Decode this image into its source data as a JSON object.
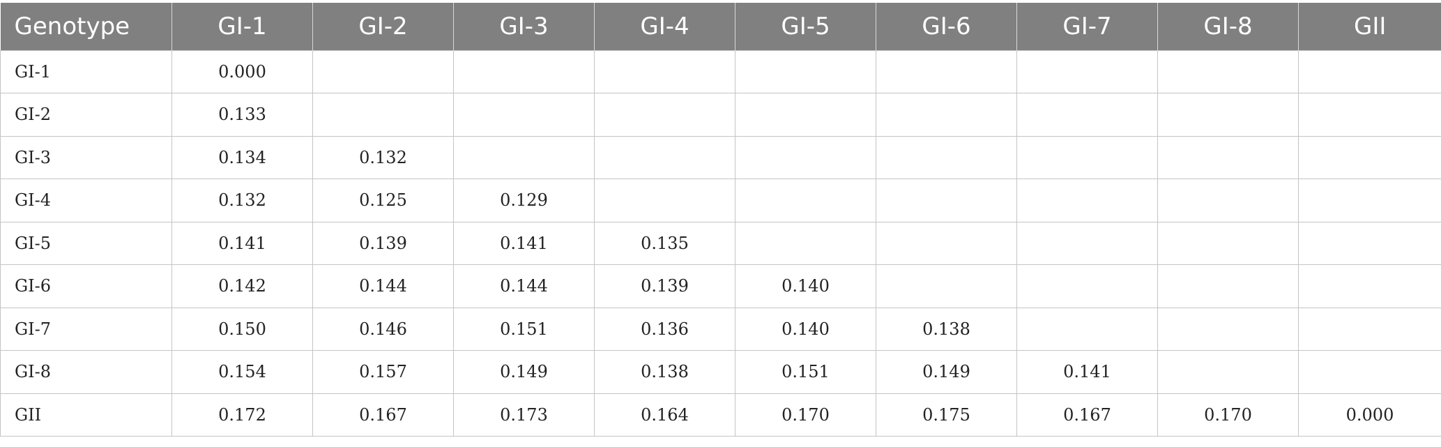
{
  "table": {
    "headers": [
      "Genotype",
      "GI-1",
      "GI-2",
      "GI-3",
      "GI-4",
      "GI-5",
      "GI-6",
      "GI-7",
      "GI-8",
      "GII"
    ],
    "rows": [
      {
        "genotype": "GI-1",
        "values": [
          "0.000",
          "",
          "",
          "",
          "",
          "",
          "",
          "",
          ""
        ]
      },
      {
        "genotype": "GI-2",
        "values": [
          "0.133",
          "",
          "",
          "",
          "",
          "",
          "",
          "",
          ""
        ]
      },
      {
        "genotype": "GI-3",
        "values": [
          "0.134",
          "0.132",
          "",
          "",
          "",
          "",
          "",
          "",
          ""
        ]
      },
      {
        "genotype": "GI-4",
        "values": [
          "0.132",
          "0.125",
          "0.129",
          "",
          "",
          "",
          "",
          "",
          ""
        ]
      },
      {
        "genotype": "GI-5",
        "values": [
          "0.141",
          "0.139",
          "0.141",
          "0.135",
          "",
          "",
          "",
          "",
          ""
        ]
      },
      {
        "genotype": "GI-6",
        "values": [
          "0.142",
          "0.144",
          "0.144",
          "0.139",
          "0.140",
          "",
          "",
          "",
          ""
        ]
      },
      {
        "genotype": "GI-7",
        "values": [
          "0.150",
          "0.146",
          "0.151",
          "0.136",
          "0.140",
          "0.138",
          "",
          "",
          ""
        ]
      },
      {
        "genotype": "GI-8",
        "values": [
          "0.154",
          "0.157",
          "0.149",
          "0.138",
          "0.151",
          "0.149",
          "0.141",
          "",
          ""
        ]
      },
      {
        "genotype": "GII",
        "values": [
          "0.172",
          "0.167",
          "0.173",
          "0.164",
          "0.170",
          "0.175",
          "0.167",
          "0.170",
          "0.000"
        ]
      }
    ]
  },
  "colors": {
    "header_background": "#808080",
    "header_text": "#ffffff",
    "grid_line": "#c4c4c4"
  }
}
